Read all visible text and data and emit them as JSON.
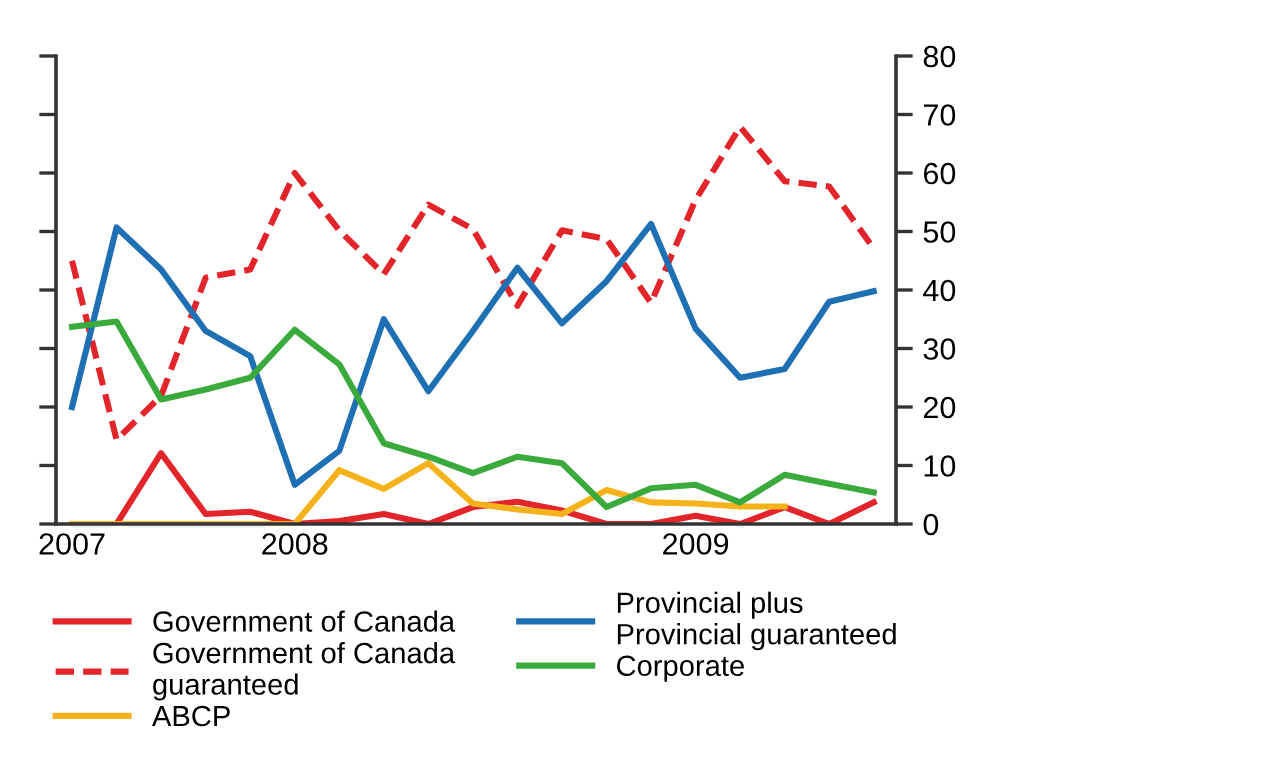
{
  "chart_data": {
    "type": "line",
    "categories": [
      "2007",
      null,
      null,
      null,
      null,
      "2008",
      null,
      null,
      null,
      null,
      null,
      null,
      null,
      null,
      "2009",
      null,
      null,
      null,
      null
    ],
    "ylim": [
      0,
      80
    ],
    "yticks": [
      0,
      10,
      20,
      30,
      40,
      50,
      60,
      70,
      80
    ],
    "grid": false,
    "legend": "bottom",
    "marker": "none",
    "series": [
      {
        "name": "Government of Canada",
        "color": "#e2242b",
        "line_style": "solid",
        "values": [
          0,
          0,
          12.1,
          1.7,
          2.1,
          0,
          0.5,
          1.7,
          0,
          2.9,
          3.8,
          2.3,
          0,
          0,
          1.4,
          0,
          2.9,
          0,
          3.7
        ]
      },
      {
        "name": "Government of Canada\nguaranteed",
        "color": "#e2242b",
        "line_style": "dashed",
        "values": [
          45,
          14.4,
          21.9,
          42.1,
          43.5,
          60,
          50.2,
          42.7,
          54.6,
          50.4,
          37.3,
          50.2,
          48.7,
          37.8,
          55.4,
          67.9,
          58.6,
          57.7,
          47.1
        ]
      },
      {
        "name": "ABCP",
        "color": "#f6b21b",
        "line_style": "solid",
        "values": [
          0,
          0,
          0,
          0,
          0,
          0,
          9.2,
          6,
          10.4,
          3.5,
          2.5,
          1.7,
          5.8,
          3.7,
          3.5,
          3,
          3,
          null,
          null
        ]
      },
      {
        "name": "Provincial plus\nProvincial guaranteed",
        "color": "#1f6fb4",
        "line_style": "solid",
        "values": [
          20,
          50.7,
          43.5,
          33,
          28.7,
          6.7,
          12.5,
          35,
          22.7,
          33,
          43.8,
          34.3,
          41.5,
          51.3,
          33.4,
          25,
          26.5,
          38,
          39.8
        ]
      },
      {
        "name": "Corporate",
        "color": "#3aaa3c",
        "line_style": "solid",
        "values": [
          33.7,
          34.6,
          21.3,
          23,
          25,
          33.2,
          27.3,
          13.8,
          11.5,
          8.7,
          11.5,
          10.4,
          2.9,
          6.1,
          6.7,
          3.7,
          8.4,
          6.9,
          5.4
        ]
      }
    ]
  }
}
